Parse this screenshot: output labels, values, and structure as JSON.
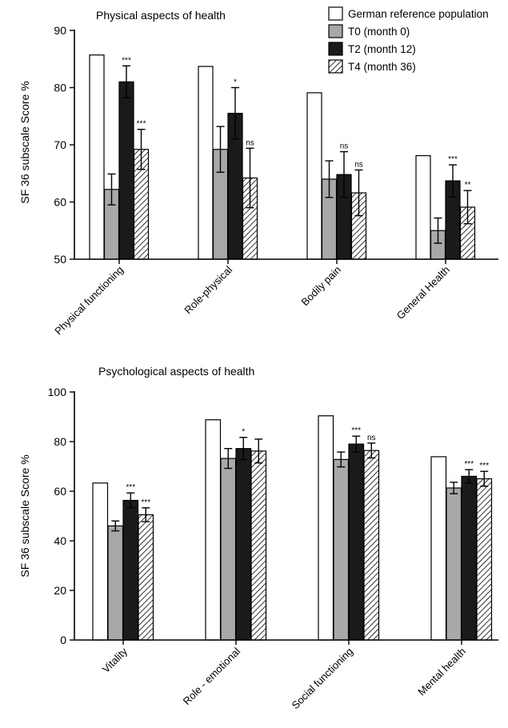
{
  "chart_data": [
    {
      "type": "bar",
      "title": "Physical aspects of health",
      "ylabel": "SF 36 subscale Score %",
      "xlabel": "",
      "ylim": [
        50,
        90
      ],
      "yticks": [
        50,
        60,
        70,
        80,
        90
      ],
      "categories": [
        "Physical functioning",
        "Role-physical",
        "Bodily pain",
        "General Health"
      ],
      "legend": "top-right",
      "series": [
        {
          "name": "German reference population",
          "values": [
            85.7,
            83.7,
            79.1,
            68.1
          ],
          "errors": [
            null,
            null,
            null,
            null
          ],
          "sig": [
            "",
            "",
            "",
            ""
          ],
          "fill": "#ffffff",
          "pattern": "none"
        },
        {
          "name": "T0 (month 0)",
          "values": [
            62.2,
            69.2,
            64.0,
            55.0
          ],
          "errors": [
            2.7,
            4.0,
            3.2,
            2.2
          ],
          "sig": [
            "",
            "",
            "",
            ""
          ],
          "fill": "#a8a8a8",
          "pattern": "none"
        },
        {
          "name": "T2 (month 12)",
          "values": [
            81.0,
            75.5,
            64.8,
            63.7
          ],
          "errors": [
            2.8,
            4.5,
            4.0,
            2.8
          ],
          "sig": [
            "***",
            "*",
            "ns",
            "***"
          ],
          "fill": "#1a1a1a",
          "pattern": "none"
        },
        {
          "name": "T4 (month 36)",
          "values": [
            69.2,
            64.2,
            61.6,
            59.1
          ],
          "errors": [
            3.5,
            5.2,
            4.0,
            2.9
          ],
          "sig": [
            "***",
            "ns",
            "ns",
            "**"
          ],
          "fill": "#ffffff",
          "pattern": "hatch"
        }
      ]
    },
    {
      "type": "bar",
      "title": "Psychological aspects of health",
      "ylabel": "SF 36 subscale Score %",
      "xlabel": "",
      "ylim": [
        0,
        100
      ],
      "yticks": [
        0,
        20,
        40,
        60,
        80,
        100
      ],
      "categories": [
        "Vitality",
        "Role - emotional",
        "Social functioning",
        "Mental health"
      ],
      "series": [
        {
          "name": "German reference population",
          "values": [
            63.3,
            88.8,
            90.4,
            73.9
          ],
          "errors": [
            null,
            null,
            null,
            null
          ],
          "sig": [
            "",
            "",
            "",
            ""
          ],
          "fill": "#ffffff",
          "pattern": "none"
        },
        {
          "name": "T0 (month 0)",
          "values": [
            46.0,
            73.2,
            72.8,
            61.3
          ],
          "errors": [
            2.0,
            4.0,
            3.0,
            2.3
          ],
          "sig": [
            "",
            "",
            "",
            ""
          ],
          "fill": "#a8a8a8",
          "pattern": "none"
        },
        {
          "name": "T2 (month 12)",
          "values": [
            56.3,
            77.2,
            79.0,
            66.0
          ],
          "errors": [
            3.0,
            4.5,
            3.2,
            2.7
          ],
          "sig": [
            "***",
            "*",
            "***",
            "***"
          ],
          "fill": "#1a1a1a",
          "pattern": "none"
        },
        {
          "name": "T4 (month 36)",
          "values": [
            50.5,
            76.2,
            76.4,
            65.0
          ],
          "errors": [
            2.8,
            4.8,
            3.0,
            3.0
          ],
          "sig": [
            "***",
            "",
            "ns",
            "***"
          ],
          "fill": "#ffffff",
          "pattern": "hatch"
        }
      ]
    }
  ]
}
